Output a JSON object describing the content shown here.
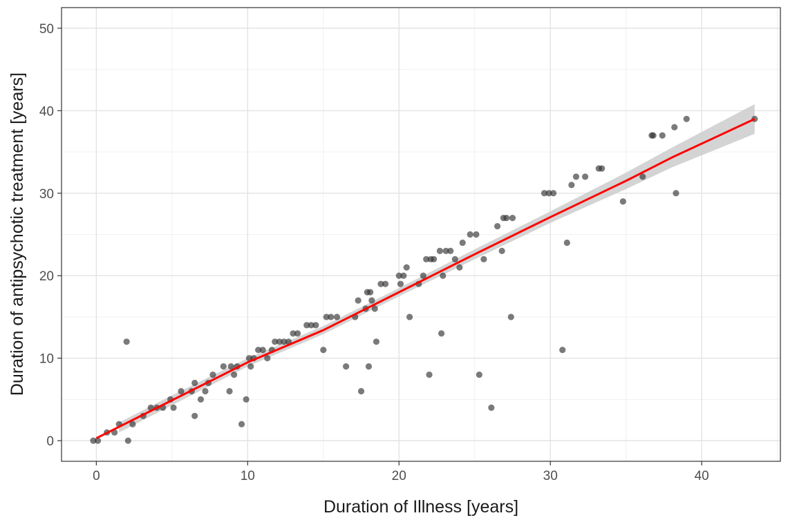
{
  "chart_data": {
    "type": "scatter",
    "title": "",
    "xlabel": "Duration of Illness [years]",
    "ylabel": "Duration of antipsychotic treatment [years]",
    "xlim": [
      -2.3,
      45.2
    ],
    "ylim": [
      -2.5,
      52.5
    ],
    "x_ticks": [
      0,
      10,
      20,
      30,
      40
    ],
    "y_ticks": [
      0,
      10,
      20,
      30,
      40,
      50
    ],
    "x_tick_labels": [
      "0",
      "10",
      "20",
      "30",
      "40"
    ],
    "y_tick_labels": [
      "0",
      "10",
      "20",
      "30",
      "40",
      "50"
    ],
    "grid": true,
    "point_color": "#333333",
    "fit_color": "#ff0000",
    "band_color": "#cccccc",
    "points": [
      {
        "x": -0.2,
        "y": 0
      },
      {
        "x": 0.1,
        "y": 0
      },
      {
        "x": 0.7,
        "y": 1
      },
      {
        "x": 1.2,
        "y": 1
      },
      {
        "x": 1.5,
        "y": 2
      },
      {
        "x": 2.0,
        "y": 12
      },
      {
        "x": 2.1,
        "y": 0
      },
      {
        "x": 2.4,
        "y": 2
      },
      {
        "x": 3.1,
        "y": 3
      },
      {
        "x": 3.6,
        "y": 4
      },
      {
        "x": 4.0,
        "y": 4
      },
      {
        "x": 4.4,
        "y": 4
      },
      {
        "x": 4.9,
        "y": 5
      },
      {
        "x": 5.1,
        "y": 4
      },
      {
        "x": 5.6,
        "y": 6
      },
      {
        "x": 6.3,
        "y": 6
      },
      {
        "x": 6.5,
        "y": 7
      },
      {
        "x": 6.5,
        "y": 3
      },
      {
        "x": 6.9,
        "y": 5
      },
      {
        "x": 7.2,
        "y": 6
      },
      {
        "x": 7.4,
        "y": 7
      },
      {
        "x": 7.7,
        "y": 8
      },
      {
        "x": 8.4,
        "y": 9
      },
      {
        "x": 8.8,
        "y": 6
      },
      {
        "x": 8.9,
        "y": 9
      },
      {
        "x": 9.1,
        "y": 8
      },
      {
        "x": 9.3,
        "y": 9
      },
      {
        "x": 9.6,
        "y": 2
      },
      {
        "x": 9.9,
        "y": 5
      },
      {
        "x": 10.1,
        "y": 10
      },
      {
        "x": 10.2,
        "y": 9
      },
      {
        "x": 10.4,
        "y": 10
      },
      {
        "x": 10.7,
        "y": 11
      },
      {
        "x": 11.0,
        "y": 11
      },
      {
        "x": 11.3,
        "y": 10
      },
      {
        "x": 11.6,
        "y": 11
      },
      {
        "x": 11.8,
        "y": 12
      },
      {
        "x": 12.1,
        "y": 12
      },
      {
        "x": 12.4,
        "y": 12
      },
      {
        "x": 12.7,
        "y": 12
      },
      {
        "x": 13.0,
        "y": 13
      },
      {
        "x": 13.3,
        "y": 13
      },
      {
        "x": 13.9,
        "y": 14
      },
      {
        "x": 14.2,
        "y": 14
      },
      {
        "x": 14.5,
        "y": 14
      },
      {
        "x": 15.0,
        "y": 11
      },
      {
        "x": 15.2,
        "y": 15
      },
      {
        "x": 15.5,
        "y": 15
      },
      {
        "x": 15.9,
        "y": 15
      },
      {
        "x": 16.5,
        "y": 9
      },
      {
        "x": 17.1,
        "y": 15
      },
      {
        "x": 17.3,
        "y": 17
      },
      {
        "x": 17.5,
        "y": 6
      },
      {
        "x": 17.8,
        "y": 16
      },
      {
        "x": 17.9,
        "y": 18
      },
      {
        "x": 18.0,
        "y": 9
      },
      {
        "x": 18.1,
        "y": 18
      },
      {
        "x": 18.2,
        "y": 17
      },
      {
        "x": 18.4,
        "y": 16
      },
      {
        "x": 18.5,
        "y": 12
      },
      {
        "x": 18.8,
        "y": 19
      },
      {
        "x": 19.1,
        "y": 19
      },
      {
        "x": 20.0,
        "y": 20
      },
      {
        "x": 20.1,
        "y": 19
      },
      {
        "x": 20.3,
        "y": 20
      },
      {
        "x": 20.5,
        "y": 21
      },
      {
        "x": 20.7,
        "y": 15
      },
      {
        "x": 21.3,
        "y": 19
      },
      {
        "x": 21.6,
        "y": 20
      },
      {
        "x": 21.8,
        "y": 22
      },
      {
        "x": 22.0,
        "y": 8
      },
      {
        "x": 22.1,
        "y": 22
      },
      {
        "x": 22.3,
        "y": 22
      },
      {
        "x": 22.7,
        "y": 23
      },
      {
        "x": 22.8,
        "y": 13
      },
      {
        "x": 22.9,
        "y": 20
      },
      {
        "x": 23.1,
        "y": 23
      },
      {
        "x": 23.4,
        "y": 23
      },
      {
        "x": 23.7,
        "y": 22
      },
      {
        "x": 24.0,
        "y": 21
      },
      {
        "x": 24.2,
        "y": 24
      },
      {
        "x": 24.7,
        "y": 25
      },
      {
        "x": 25.1,
        "y": 25
      },
      {
        "x": 25.3,
        "y": 8
      },
      {
        "x": 25.6,
        "y": 22
      },
      {
        "x": 26.1,
        "y": 4
      },
      {
        "x": 26.5,
        "y": 26
      },
      {
        "x": 26.8,
        "y": 23
      },
      {
        "x": 26.9,
        "y": 27
      },
      {
        "x": 27.1,
        "y": 27
      },
      {
        "x": 27.4,
        "y": 15
      },
      {
        "x": 27.5,
        "y": 27
      },
      {
        "x": 29.6,
        "y": 30
      },
      {
        "x": 29.9,
        "y": 30
      },
      {
        "x": 30.2,
        "y": 30
      },
      {
        "x": 30.8,
        "y": 11
      },
      {
        "x": 31.1,
        "y": 24
      },
      {
        "x": 31.4,
        "y": 31
      },
      {
        "x": 31.7,
        "y": 32
      },
      {
        "x": 32.3,
        "y": 32
      },
      {
        "x": 33.2,
        "y": 33
      },
      {
        "x": 33.4,
        "y": 33
      },
      {
        "x": 34.8,
        "y": 29
      },
      {
        "x": 36.1,
        "y": 32
      },
      {
        "x": 36.7,
        "y": 37
      },
      {
        "x": 36.8,
        "y": 37
      },
      {
        "x": 37.4,
        "y": 37
      },
      {
        "x": 38.2,
        "y": 38
      },
      {
        "x": 38.3,
        "y": 30
      },
      {
        "x": 39.0,
        "y": 39
      },
      {
        "x": 43.5,
        "y": 39
      }
    ],
    "fit_line": [
      {
        "x": 0.0,
        "y": 0.3
      },
      {
        "x": 5,
        "y": 4.9
      },
      {
        "x": 10,
        "y": 9.5
      },
      {
        "x": 15,
        "y": 13.4
      },
      {
        "x": 20,
        "y": 18.0
      },
      {
        "x": 25,
        "y": 22.6
      },
      {
        "x": 30,
        "y": 27.1
      },
      {
        "x": 35,
        "y": 31.5
      },
      {
        "x": 38,
        "y": 34.3
      },
      {
        "x": 43.5,
        "y": 39.0
      }
    ],
    "band_upper": [
      {
        "x": 1.5,
        "y": 2.2
      },
      {
        "x": 5,
        "y": 5.5
      },
      {
        "x": 10,
        "y": 10.0
      },
      {
        "x": 15,
        "y": 13.9
      },
      {
        "x": 20,
        "y": 18.5
      },
      {
        "x": 25,
        "y": 23.2
      },
      {
        "x": 30,
        "y": 27.8
      },
      {
        "x": 35,
        "y": 32.5
      },
      {
        "x": 38,
        "y": 35.5
      },
      {
        "x": 43.5,
        "y": 40.8
      }
    ],
    "band_lower": [
      {
        "x": 1.5,
        "y": 1.0
      },
      {
        "x": 5,
        "y": 4.3
      },
      {
        "x": 10,
        "y": 9.0
      },
      {
        "x": 15,
        "y": 12.9
      },
      {
        "x": 20,
        "y": 17.5
      },
      {
        "x": 25,
        "y": 22.0
      },
      {
        "x": 30,
        "y": 26.4
      },
      {
        "x": 35,
        "y": 30.5
      },
      {
        "x": 38,
        "y": 33.1
      },
      {
        "x": 43.5,
        "y": 37.2
      }
    ]
  }
}
